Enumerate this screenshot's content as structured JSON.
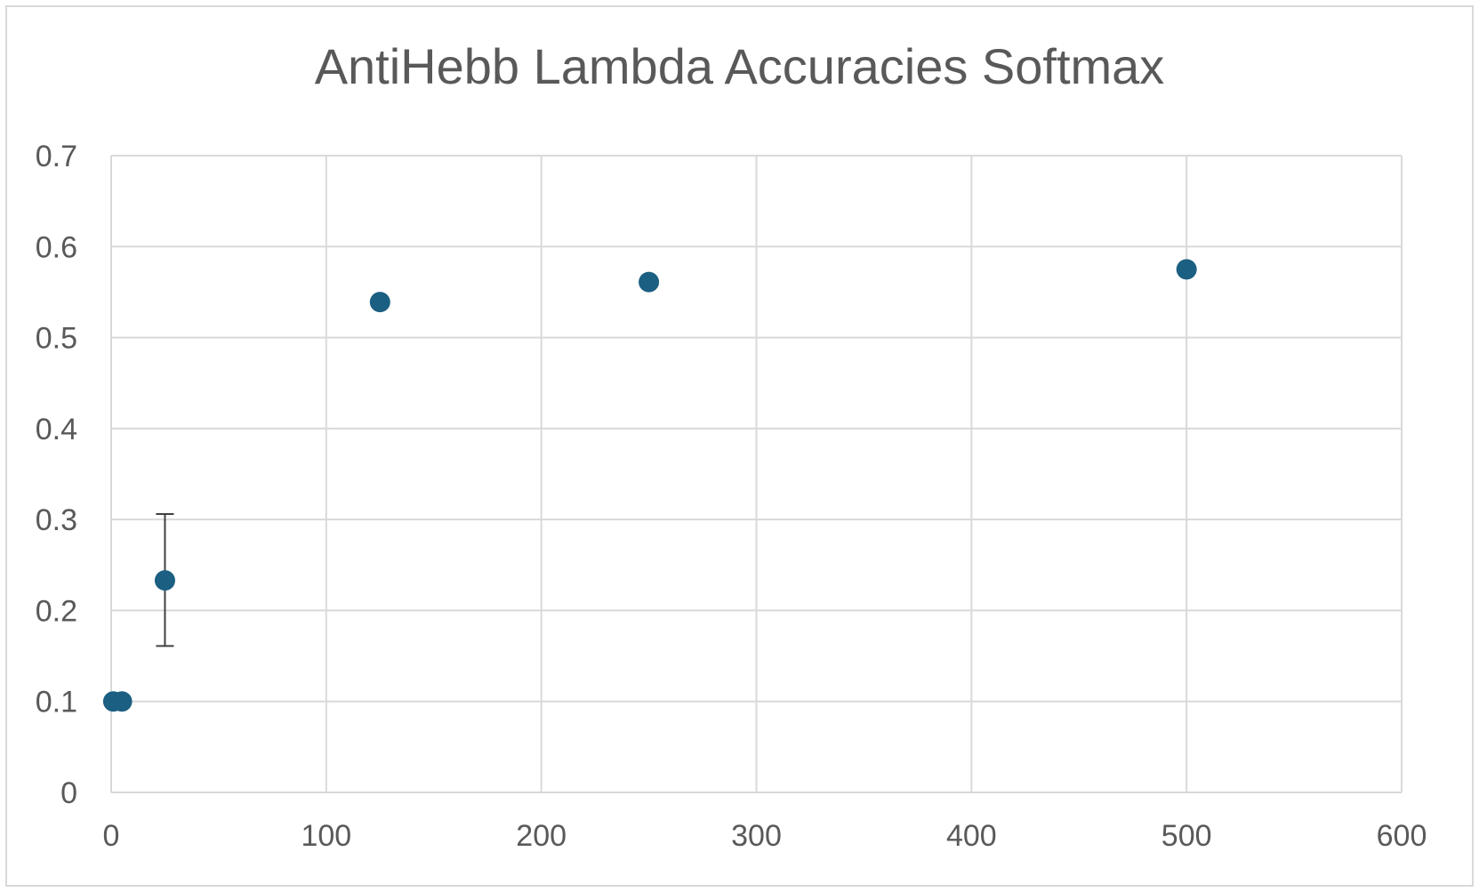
{
  "chart_data": {
    "type": "scatter",
    "title": "AntiHebb Lambda Accuracies Softmax",
    "xlabel": "",
    "ylabel": "",
    "xlim": [
      0,
      600
    ],
    "ylim": [
      0,
      0.7
    ],
    "x_ticks": [
      0,
      100,
      200,
      300,
      400,
      500,
      600
    ],
    "y_ticks": [
      0,
      0.1,
      0.2,
      0.3,
      0.4,
      0.5,
      0.6,
      0.7
    ],
    "x_tick_labels": [
      "0",
      "100",
      "200",
      "300",
      "400",
      "500",
      "600"
    ],
    "y_tick_labels": [
      "0",
      "0.1",
      "0.2",
      "0.3",
      "0.4",
      "0.5",
      "0.6",
      "0.7"
    ],
    "grid": true,
    "legend": "none",
    "series": [
      {
        "color": "#1b5f82",
        "points": [
          {
            "x": 1,
            "y": 0.1
          },
          {
            "x": 5,
            "y": 0.1
          },
          {
            "x": 25,
            "y": 0.233,
            "error_low": 0.161,
            "error_high": 0.306
          },
          {
            "x": 125,
            "y": 0.539
          },
          {
            "x": 250,
            "y": 0.561
          },
          {
            "x": 500,
            "y": 0.575
          }
        ]
      }
    ],
    "colors": {
      "gridline": "#d9d9d9",
      "text": "#595959",
      "error_bar": "#404040"
    }
  }
}
